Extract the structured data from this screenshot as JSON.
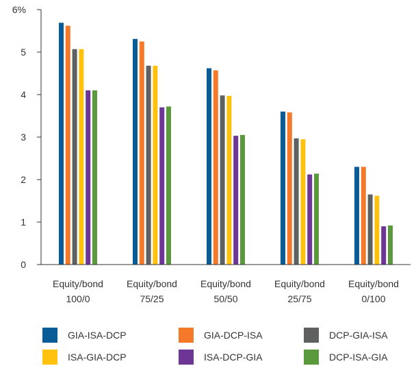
{
  "chart_data": {
    "type": "bar",
    "ylim": [
      0,
      6
    ],
    "yticks": [
      "0",
      "1",
      "2",
      "3",
      "4",
      "5",
      "6%"
    ],
    "categories": [
      [
        "Equity/bond",
        "100/0"
      ],
      [
        "Equity/bond",
        "75/25"
      ],
      [
        "Equity/bond",
        "50/50"
      ],
      [
        "Equity/bond",
        "25/75"
      ],
      [
        "Equity/bond",
        "0/100"
      ]
    ],
    "series": [
      {
        "name": "GIA-ISA-DCP",
        "color": "#0a5c96",
        "values": [
          5.69,
          5.31,
          4.62,
          3.6,
          2.3
        ]
      },
      {
        "name": "GIA-DCP-ISA",
        "color": "#f47a2a",
        "values": [
          5.62,
          5.25,
          4.57,
          3.58,
          2.3
        ]
      },
      {
        "name": "DCP-GIA-ISA",
        "color": "#5f6062",
        "values": [
          5.07,
          4.68,
          3.98,
          2.97,
          1.65
        ]
      },
      {
        "name": "ISA-GIA-DCP",
        "color": "#ffc20e",
        "values": [
          5.07,
          4.68,
          3.97,
          2.95,
          1.62
        ]
      },
      {
        "name": "ISA-DCP-GIA",
        "color": "#6d3695",
        "values": [
          4.1,
          3.7,
          3.03,
          2.12,
          0.9
        ]
      },
      {
        "name": "DCP-ISA-GIA",
        "color": "#5b9a3c",
        "values": [
          4.1,
          3.72,
          3.05,
          2.14,
          0.92
        ]
      }
    ],
    "grid": false,
    "legend_placement": "bottom"
  }
}
